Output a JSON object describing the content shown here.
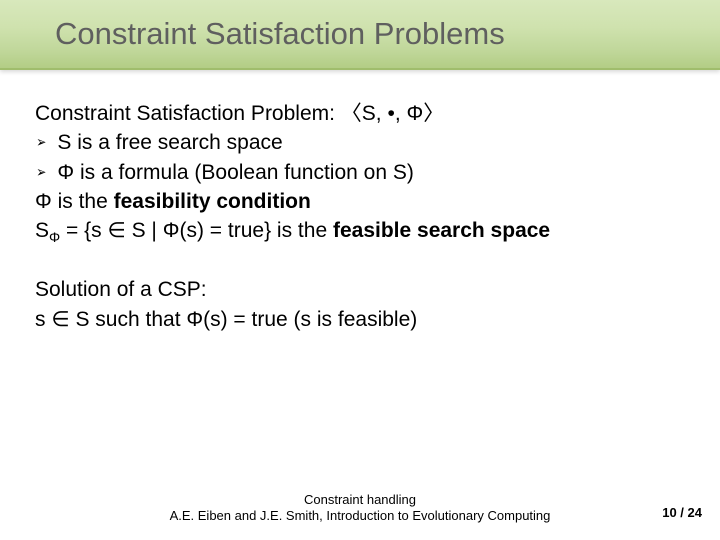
{
  "slide": {
    "title": "Constraint Satisfaction Problems",
    "title_color": "#5f5f5f",
    "title_fontsize": 31,
    "bar_gradient": [
      "#d8e8bc",
      "#cfe2ae",
      "#c0d79a",
      "#b3cd85"
    ],
    "body_fontsize": 21,
    "body_color": "#000000",
    "lines": {
      "l1_pre": "Constraint Satisfaction Problem: 〈S, •, Φ〉",
      "l2": "S is a free search space",
      "l3": "Φ is a formula (Boolean function on S)",
      "l4_a": "Φ is the ",
      "l4_b": "feasibility condition",
      "l5_a": "S",
      "l5_sub": "Φ",
      "l5_b": " = {s ∈ S | Φ(s) = true} is the ",
      "l5_c": "feasible search space",
      "l6": "Solution of a CSP:",
      "l7": "s ∈ S such that Φ(s) = true (s is feasible)"
    }
  },
  "footer": {
    "line1": "Constraint handling",
    "line2": "A.E. Eiben and J.E. Smith, Introduction to Evolutionary Computing",
    "fontsize": 13,
    "page_current": "10",
    "page_sep": " / ",
    "page_total": "24"
  }
}
